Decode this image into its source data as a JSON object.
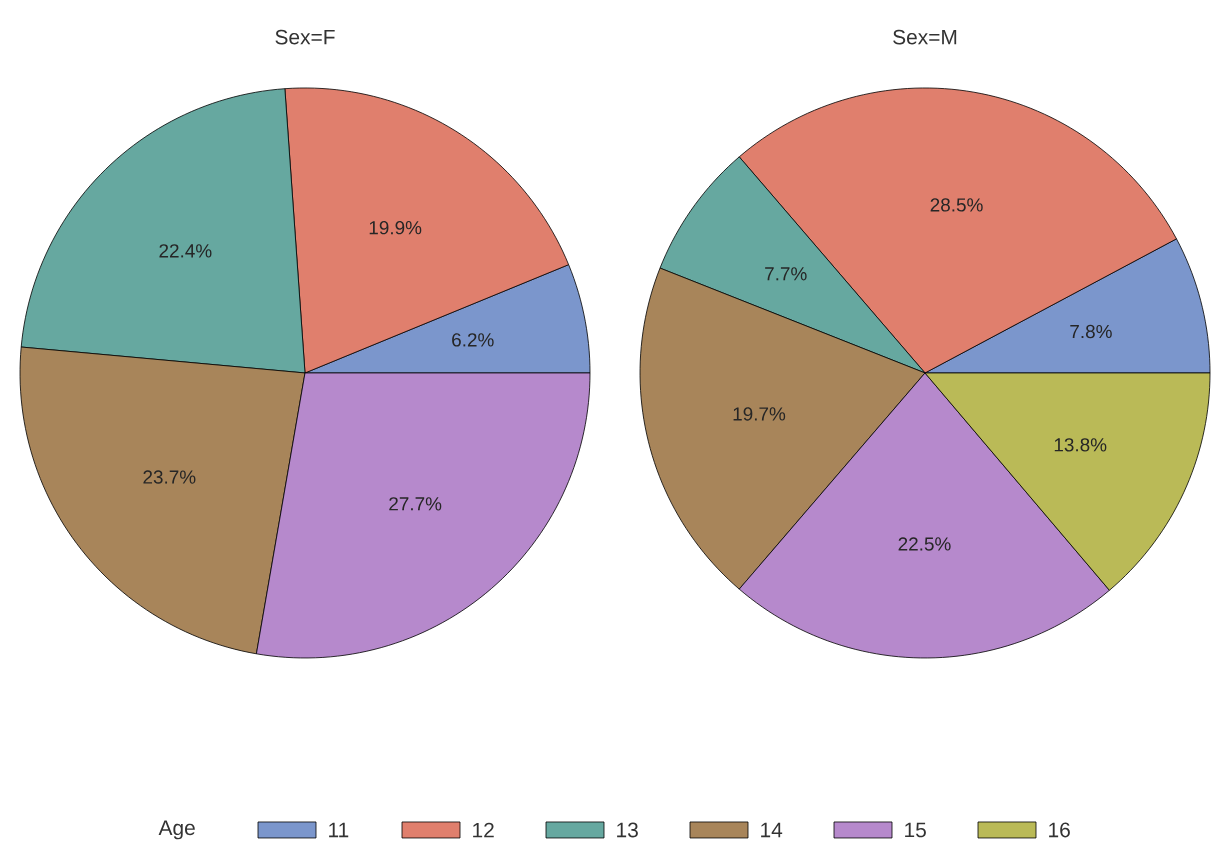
{
  "chart_data": [
    {
      "type": "pie",
      "title": "Sex=F",
      "categories": [
        "11",
        "12",
        "13",
        "14",
        "15",
        "16"
      ],
      "values": [
        6.2,
        19.9,
        22.4,
        23.7,
        27.7,
        0
      ],
      "colors": [
        "#7b96cc",
        "#e07f6d",
        "#66a8a0",
        "#a8855a",
        "#b689cc",
        "#baba57"
      ],
      "value_labels": [
        "6.2%",
        "19.9%",
        "22.4%",
        "23.7%",
        "27.7%",
        null
      ],
      "legend": "bottom",
      "legend_title": "Age"
    },
    {
      "type": "pie",
      "title": "Sex=M",
      "categories": [
        null,
        null,
        null,
        null,
        null,
        null
      ],
      "values": [
        7.8,
        28.5,
        7.7,
        19.7,
        22.5,
        13.8
      ],
      "colors": [
        "#7b96cc",
        "#e07f6d",
        "#66a8a0",
        "#a8855a",
        "#b689cc",
        "#baba57"
      ],
      "value_labels": [
        "7.8%",
        "28.5%",
        "7.7%",
        "19.7%",
        "22.5%",
        "13.8%"
      ]
    }
  ]
}
